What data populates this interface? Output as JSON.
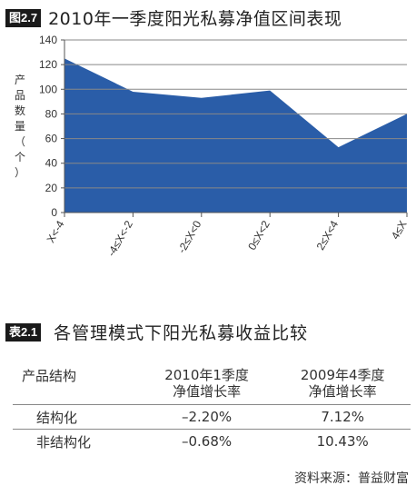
{
  "figure": {
    "badge": "图2.7",
    "title": "2010年一季度阳光私募净值区间表现"
  },
  "chart_data": {
    "type": "area",
    "title": "2010年一季度阳光私募净值区间表现",
    "ylabel": "产品数量（个）",
    "xlabel": "",
    "categories": [
      "X<-4",
      "-4≤X<-2",
      "-2≤X<0",
      "0≤X<2",
      "2≤X<4",
      "4≤X"
    ],
    "values": [
      125,
      98,
      93,
      99,
      53,
      80
    ],
    "ylim": [
      0,
      140
    ],
    "yticks": [
      0,
      20,
      40,
      60,
      80,
      100,
      120,
      140
    ],
    "grid": true,
    "fill_color": "#2a5da8",
    "grid_color": "#888888"
  },
  "table": {
    "badge": "表2.1",
    "title": "各管理模式下阳光私募收益比较",
    "headers": [
      "产品结构",
      "2010年1季度净值增长率",
      "2009年4季度净值增长率"
    ],
    "header_lines": [
      [
        "产品结构"
      ],
      [
        "2010年1季度",
        "净值增长率"
      ],
      [
        "2009年4季度",
        "净值增长率"
      ]
    ],
    "rows": [
      [
        "结构化",
        "–2.20%",
        "7.12%"
      ],
      [
        "非结构化",
        "–0.68%",
        "10.43%"
      ]
    ]
  },
  "source": "资料来源：普益财富"
}
